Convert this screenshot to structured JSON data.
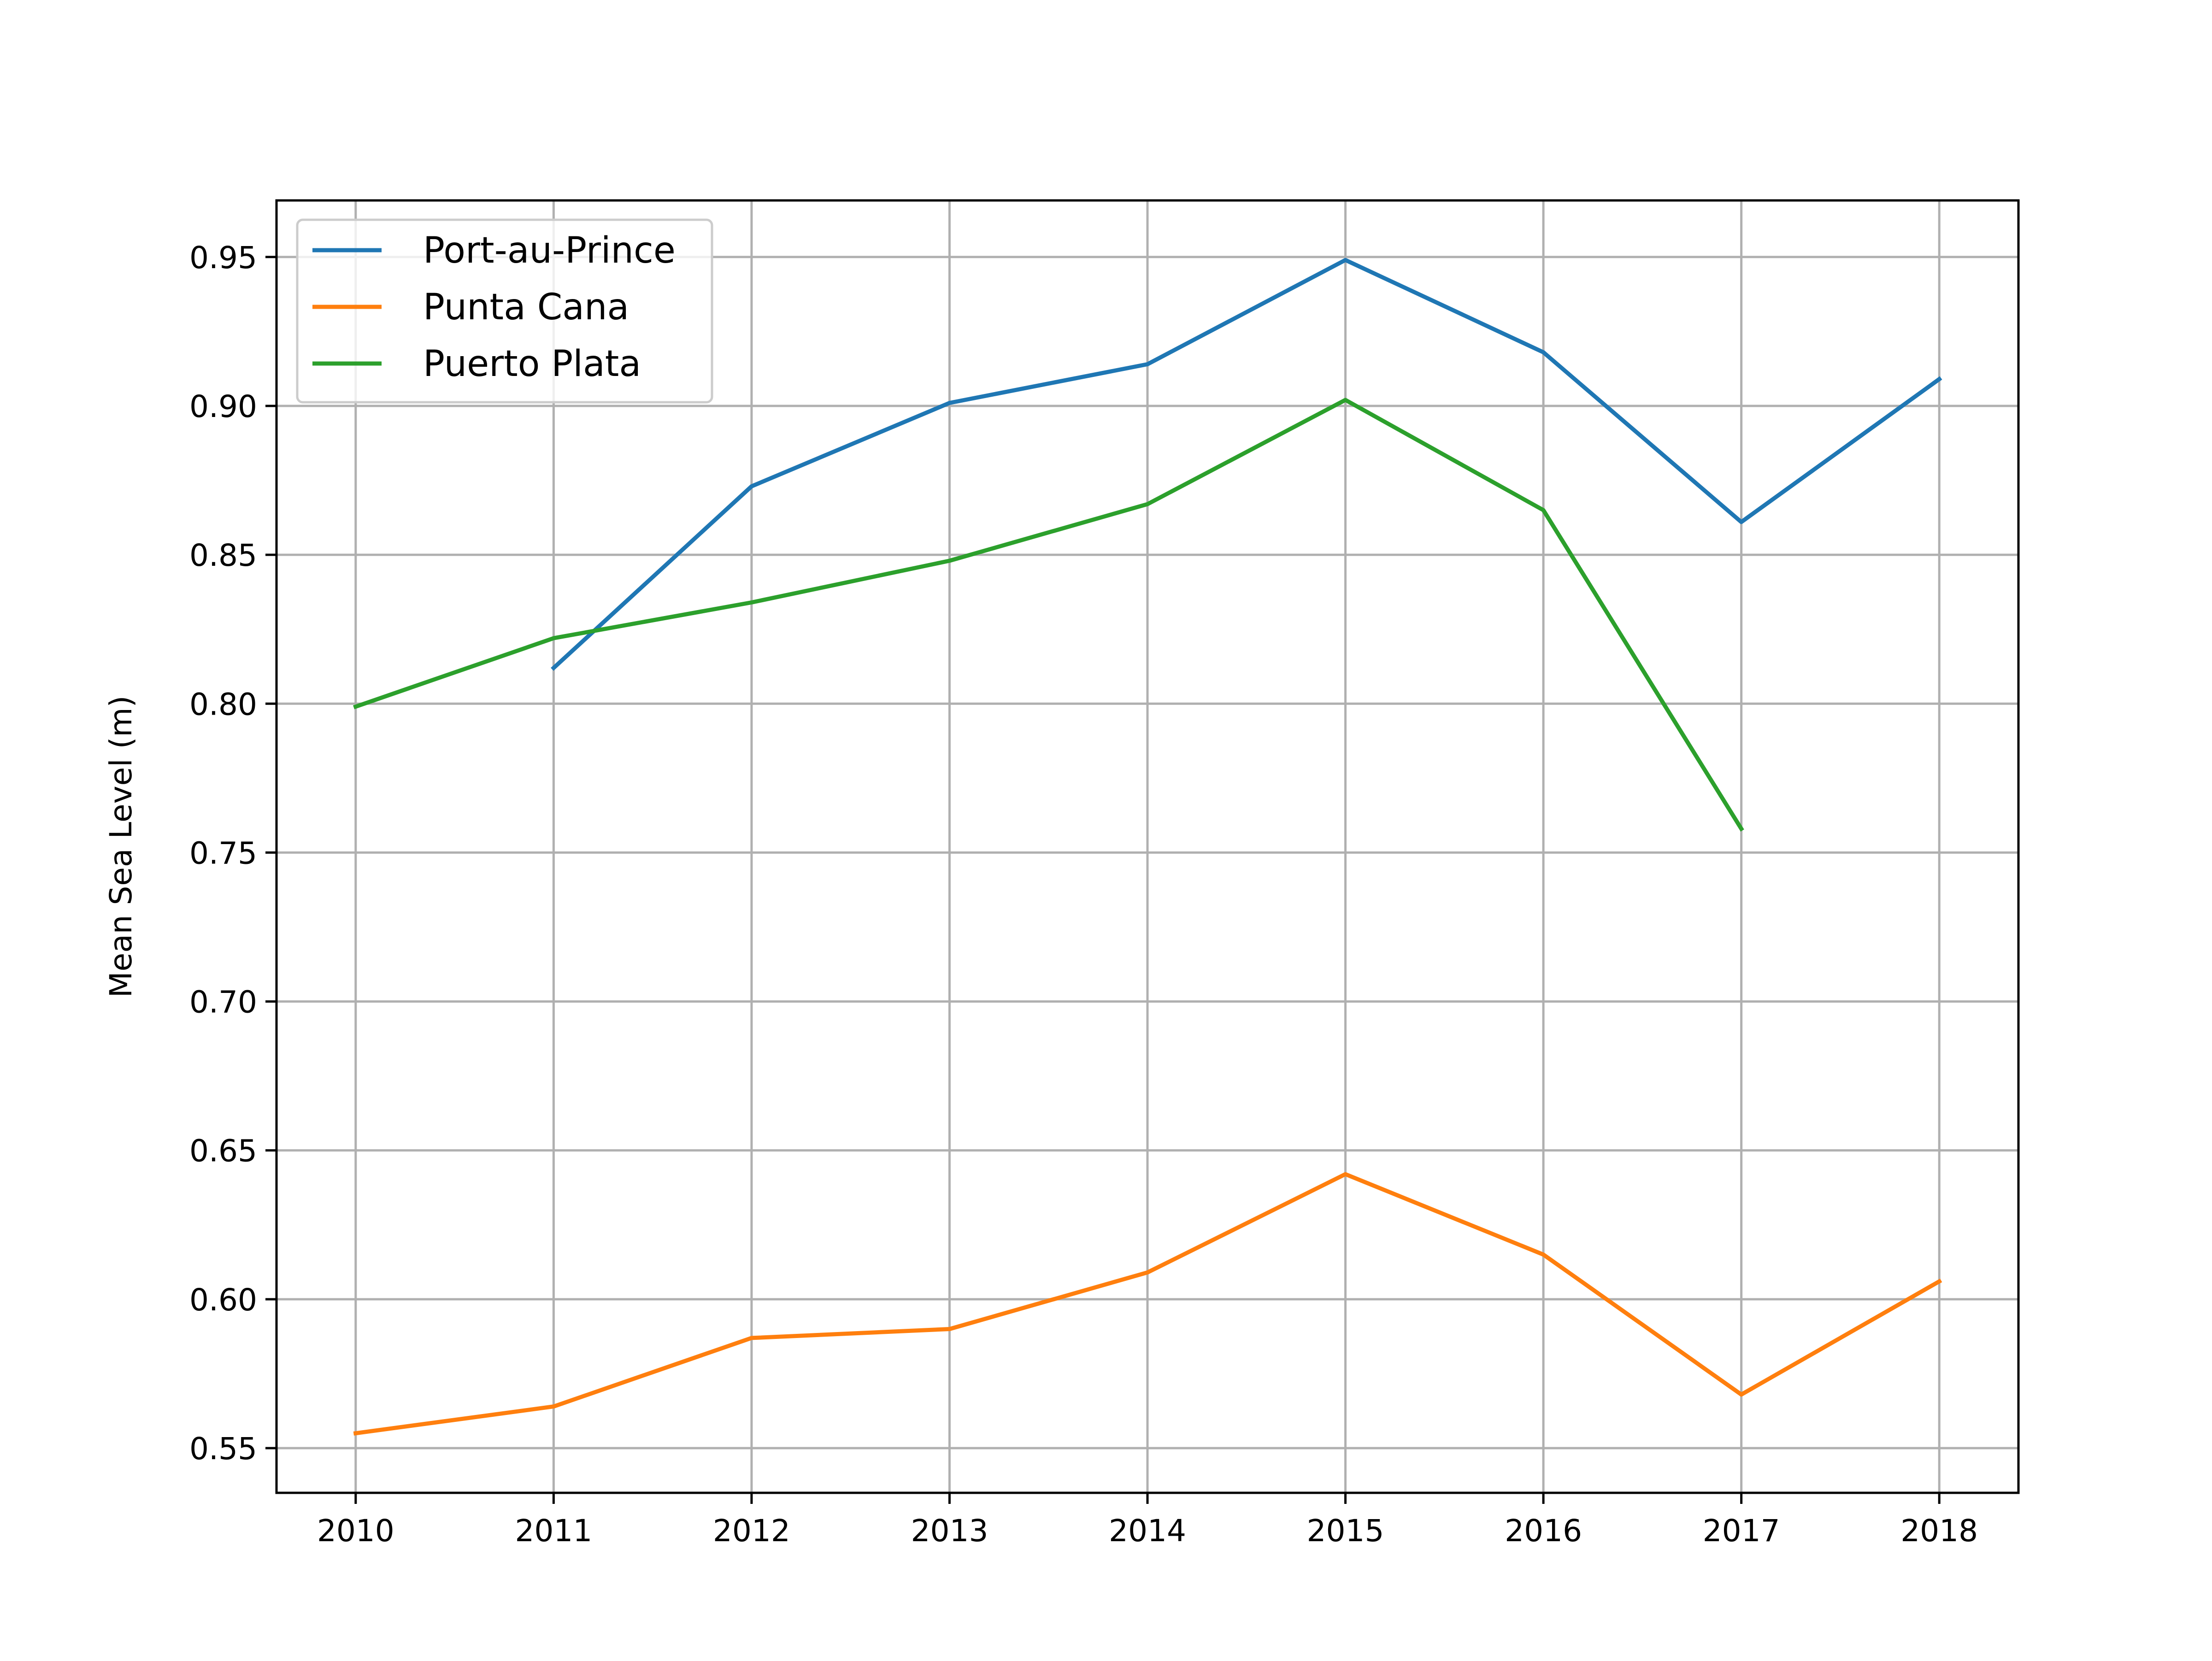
{
  "chart_data": {
    "type": "line",
    "title": "",
    "xlabel": "",
    "ylabel": "Mean Sea Level (m)",
    "x": [
      2010,
      2011,
      2012,
      2013,
      2014,
      2015,
      2016,
      2017,
      2018
    ],
    "x_tick_labels": [
      "2010",
      "2011",
      "2012",
      "2013",
      "2014",
      "2015",
      "2016",
      "2017",
      "2018"
    ],
    "y_ticks": [
      0.55,
      0.6,
      0.65,
      0.7,
      0.75,
      0.8,
      0.85,
      0.9,
      0.95
    ],
    "y_tick_labels": [
      "0.55",
      "0.60",
      "0.65",
      "0.70",
      "0.75",
      "0.80",
      "0.85",
      "0.90",
      "0.95"
    ],
    "xlim": [
      2009.6,
      2018.4
    ],
    "ylim": [
      0.535,
      0.969
    ],
    "grid": true,
    "legend_position": "upper-left",
    "series": [
      {
        "name": "Port-au-Prince",
        "color": "#1f77b4",
        "values": [
          null,
          0.812,
          0.873,
          0.901,
          0.914,
          0.949,
          0.918,
          0.861,
          0.909
        ]
      },
      {
        "name": "Punta Cana",
        "color": "#ff7f0e",
        "values": [
          0.555,
          0.564,
          0.587,
          0.59,
          0.609,
          0.642,
          0.615,
          0.568,
          0.606
        ]
      },
      {
        "name": "Puerto Plata",
        "color": "#2ca02c",
        "values": [
          0.799,
          0.822,
          0.834,
          0.848,
          0.867,
          0.902,
          0.865,
          0.758,
          null
        ]
      }
    ]
  }
}
